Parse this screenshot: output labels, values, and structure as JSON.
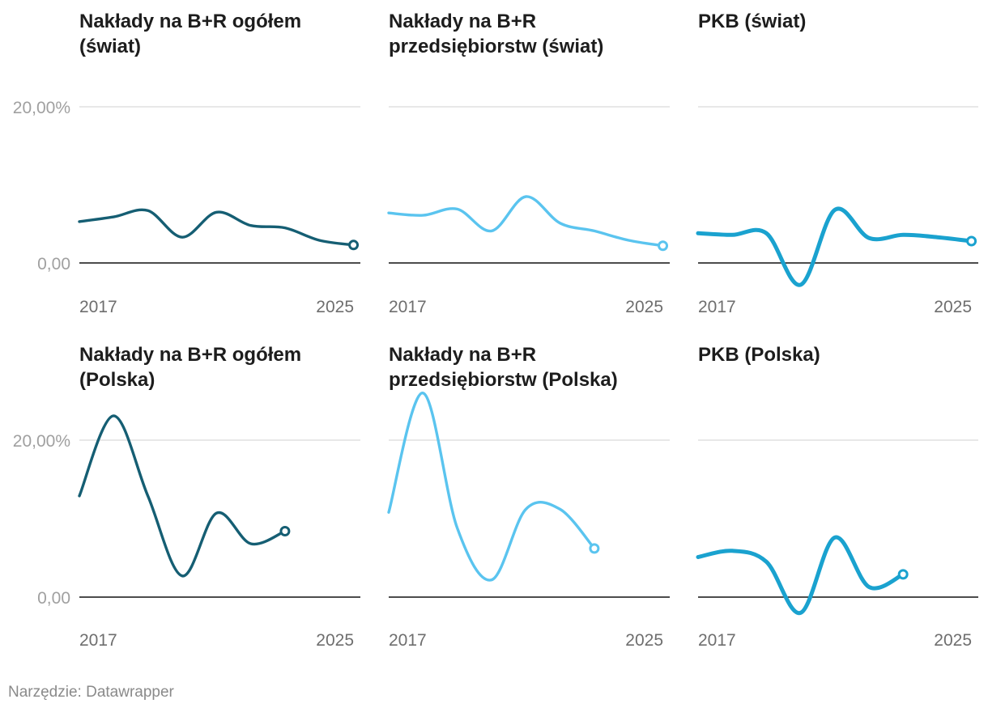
{
  "credit": "Narzędzie: Datawrapper",
  "colors": {
    "dark": "#155e73",
    "light": "#5ac4ef",
    "mid": "#1aa2cf"
  },
  "chart_data": [
    {
      "type": "line",
      "title": "Nakłady na B+R ogółem (świat)",
      "title_lines": [
        "Nakłady na B+R ogółem",
        "(świat)"
      ],
      "color": "dark",
      "line_weight": "thin",
      "x": [
        2017,
        2018,
        2019,
        2020,
        2021,
        2022,
        2023,
        2024,
        2025
      ],
      "values": [
        5.3,
        5.9,
        6.7,
        3.3,
        6.5,
        4.8,
        4.5,
        2.9,
        2.3
      ],
      "ylim": [
        0,
        20
      ],
      "y_ticks": [
        "20,00%",
        "0,00"
      ],
      "x_ticks": [
        "2017",
        "2025"
      ]
    },
    {
      "type": "line",
      "title": "Nakłady na B+R przedsiębiorstw (świat)",
      "title_lines": [
        "Nakłady na B+R",
        "przedsiębiorstw (świat)"
      ],
      "color": "light",
      "line_weight": "thin",
      "x": [
        2017,
        2018,
        2019,
        2020,
        2021,
        2022,
        2023,
        2024,
        2025
      ],
      "values": [
        6.4,
        6.1,
        6.9,
        4.1,
        8.5,
        5.1,
        4.1,
        2.9,
        2.2
      ],
      "ylim": [
        0,
        20
      ],
      "y_ticks": [
        "20,00%",
        "0,00"
      ],
      "x_ticks": [
        "2017",
        "2025"
      ]
    },
    {
      "type": "line",
      "title": "PKB (świat)",
      "title_lines": [
        "PKB (świat)"
      ],
      "color": "mid",
      "line_weight": "thick",
      "x": [
        2017,
        2018,
        2019,
        2020,
        2021,
        2022,
        2023,
        2024,
        2025
      ],
      "values": [
        3.8,
        3.6,
        3.8,
        -2.8,
        6.8,
        3.2,
        3.6,
        3.3,
        2.8
      ],
      "ylim": [
        0,
        20
      ],
      "y_ticks": [
        "20,00%",
        "0,00"
      ],
      "x_ticks": [
        "2017",
        "2025"
      ]
    },
    {
      "type": "line",
      "title": "Nakłady na B+R ogółem (Polska)",
      "title_lines": [
        "Nakłady na B+R ogółem",
        "(Polska)"
      ],
      "color": "dark",
      "line_weight": "thin",
      "x": [
        2017,
        2018,
        2019,
        2020,
        2021,
        2022,
        2023
      ],
      "values": [
        12.9,
        23.1,
        12.9,
        2.7,
        10.7,
        6.8,
        8.4
      ],
      "ylim": [
        0,
        20
      ],
      "y_ticks": [
        "20,00%",
        "0,00"
      ],
      "x_ticks": [
        "2017",
        "2025"
      ]
    },
    {
      "type": "line",
      "title": "Nakłady na B+R przedsiębiorstw (Polska)",
      "title_lines": [
        "Nakłady na B+R",
        "przedsiębiorstw (Polska)"
      ],
      "color": "light",
      "line_weight": "thin",
      "x": [
        2017,
        2018,
        2019,
        2020,
        2021,
        2022,
        2023
      ],
      "values": [
        10.8,
        26.0,
        8.8,
        2.2,
        11.2,
        11.2,
        6.2
      ],
      "ylim": [
        0,
        20
      ],
      "y_ticks": [
        "20,00%",
        "0,00"
      ],
      "x_ticks": [
        "2017",
        "2025"
      ]
    },
    {
      "type": "line",
      "title": "PKB (Polska)",
      "title_lines": [
        "PKB (Polska)"
      ],
      "color": "mid",
      "line_weight": "thick",
      "x": [
        2017,
        2018,
        2019,
        2020,
        2021,
        2022,
        2023
      ],
      "values": [
        5.1,
        5.9,
        4.5,
        -2.0,
        7.6,
        1.3,
        2.9
      ],
      "ylim": [
        0,
        20
      ],
      "y_ticks": [
        "20,00%",
        "0,00"
      ],
      "x_ticks": [
        "2017",
        "2025"
      ]
    }
  ]
}
